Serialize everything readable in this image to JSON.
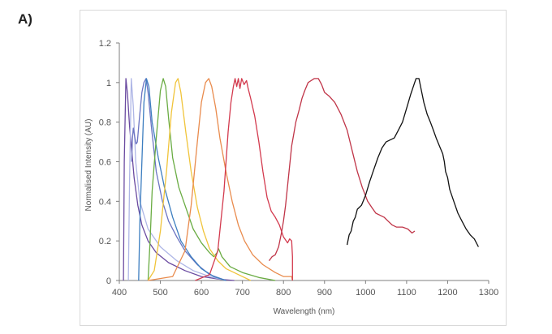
{
  "panel_label": "A)",
  "chart_data": {
    "type": "line",
    "title": "",
    "xlabel": "Wavelength (nm)",
    "ylabel": "Normalised Intensity (AU)",
    "xlim": [
      400,
      1300
    ],
    "ylim": [
      0,
      1.2
    ],
    "xticks": [
      400,
      500,
      600,
      700,
      800,
      900,
      1000,
      1100,
      1200,
      1300
    ],
    "yticks": [
      0,
      0.2,
      0.4,
      0.6,
      0.8,
      1,
      1.2
    ],
    "ytick_labels": [
      "0",
      "0.2",
      "0.4",
      "0.6",
      "0.8",
      "1",
      "1.2"
    ],
    "grid": false,
    "legend": "none",
    "series": [
      {
        "color": "#6a4aa0",
        "points": [
          [
            410,
            0
          ],
          [
            412,
            0.6
          ],
          [
            416,
            1.02
          ],
          [
            420,
            0.94
          ],
          [
            425,
            0.78
          ],
          [
            430,
            0.66
          ],
          [
            436,
            0.52
          ],
          [
            445,
            0.38
          ],
          [
            455,
            0.28
          ],
          [
            470,
            0.2
          ],
          [
            490,
            0.14
          ],
          [
            520,
            0.09
          ],
          [
            560,
            0.05
          ],
          [
            600,
            0.02
          ],
          [
            650,
            0.005
          ],
          [
            680,
            0
          ]
        ]
      },
      {
        "color": "#aeb6e6",
        "points": [
          [
            422,
            0
          ],
          [
            425,
            0.5
          ],
          [
            429,
            1.02
          ],
          [
            434,
            0.88
          ],
          [
            440,
            0.6
          ],
          [
            450,
            0.4
          ],
          [
            470,
            0.26
          ],
          [
            500,
            0.17
          ],
          [
            540,
            0.1
          ],
          [
            580,
            0.05
          ],
          [
            620,
            0.02
          ],
          [
            660,
            0
          ]
        ]
      },
      {
        "color": "#6b74c2",
        "points": [
          [
            430,
            0.6
          ],
          [
            432,
            0.72
          ],
          [
            434,
            0.77
          ],
          [
            438,
            0.72
          ],
          [
            441,
            0.69
          ],
          [
            444,
            0.7
          ],
          [
            448,
            0.8
          ],
          [
            455,
            0.95
          ],
          [
            460,
            1.0
          ],
          [
            465,
            1.02
          ],
          [
            470,
            0.95
          ],
          [
            478,
            0.78
          ],
          [
            490,
            0.55
          ],
          [
            505,
            0.4
          ],
          [
            520,
            0.3
          ],
          [
            540,
            0.22
          ],
          [
            560,
            0.15
          ],
          [
            590,
            0.08
          ],
          [
            620,
            0.03
          ],
          [
            660,
            0
          ]
        ]
      },
      {
        "color": "#3d7ec0",
        "points": [
          [
            447,
            0
          ],
          [
            450,
            0.3
          ],
          [
            455,
            0.6
          ],
          [
            460,
            0.9
          ],
          [
            466,
            1.02
          ],
          [
            472,
            0.98
          ],
          [
            480,
            0.8
          ],
          [
            495,
            0.62
          ],
          [
            510,
            0.47
          ],
          [
            530,
            0.32
          ],
          [
            550,
            0.2
          ],
          [
            575,
            0.12
          ],
          [
            600,
            0.06
          ],
          [
            630,
            0.02
          ],
          [
            660,
            0
          ]
        ]
      },
      {
        "color": "#6aac43",
        "points": [
          [
            470,
            0
          ],
          [
            475,
            0.2
          ],
          [
            480,
            0.45
          ],
          [
            490,
            0.72
          ],
          [
            500,
            0.96
          ],
          [
            507,
            1.02
          ],
          [
            513,
            0.98
          ],
          [
            520,
            0.82
          ],
          [
            530,
            0.62
          ],
          [
            545,
            0.47
          ],
          [
            560,
            0.38
          ],
          [
            580,
            0.26
          ],
          [
            600,
            0.19
          ],
          [
            620,
            0.14
          ],
          [
            630,
            0.12
          ],
          [
            638,
            0.14
          ],
          [
            642,
            0.16
          ],
          [
            650,
            0.12
          ],
          [
            670,
            0.07
          ],
          [
            700,
            0.04
          ],
          [
            740,
            0.015
          ],
          [
            780,
            0
          ]
        ]
      },
      {
        "color": "#f0c43a",
        "points": [
          [
            470,
            0
          ],
          [
            485,
            0.05
          ],
          [
            500,
            0.25
          ],
          [
            515,
            0.55
          ],
          [
            527,
            0.85
          ],
          [
            537,
            1.0
          ],
          [
            543,
            1.02
          ],
          [
            550,
            0.95
          ],
          [
            562,
            0.75
          ],
          [
            575,
            0.55
          ],
          [
            590,
            0.37
          ],
          [
            605,
            0.25
          ],
          [
            620,
            0.16
          ],
          [
            640,
            0.1
          ],
          [
            660,
            0.06
          ],
          [
            690,
            0.03
          ],
          [
            720,
            0
          ]
        ]
      },
      {
        "color": "#e98b4d",
        "points": [
          [
            470,
            0
          ],
          [
            530,
            0.02
          ],
          [
            560,
            0.15
          ],
          [
            575,
            0.38
          ],
          [
            590,
            0.7
          ],
          [
            600,
            0.9
          ],
          [
            610,
            1.0
          ],
          [
            618,
            1.02
          ],
          [
            625,
            0.98
          ],
          [
            635,
            0.87
          ],
          [
            645,
            0.72
          ],
          [
            660,
            0.55
          ],
          [
            675,
            0.4
          ],
          [
            690,
            0.28
          ],
          [
            705,
            0.2
          ],
          [
            725,
            0.13
          ],
          [
            750,
            0.08
          ],
          [
            780,
            0.04
          ],
          [
            800,
            0.02
          ],
          [
            820,
            0.02
          ],
          [
            822,
            0
          ]
        ]
      },
      {
        "color": "#d33a4e",
        "points": [
          [
            585,
            0
          ],
          [
            620,
            0.03
          ],
          [
            640,
            0.15
          ],
          [
            655,
            0.45
          ],
          [
            665,
            0.75
          ],
          [
            672,
            0.9
          ],
          [
            678,
            0.98
          ],
          [
            682,
            1.02
          ],
          [
            686,
            0.98
          ],
          [
            690,
            1.02
          ],
          [
            694,
            0.97
          ],
          [
            698,
            1.02
          ],
          [
            704,
            0.99
          ],
          [
            710,
            1.01
          ],
          [
            714,
            0.97
          ],
          [
            720,
            0.92
          ],
          [
            730,
            0.83
          ],
          [
            740,
            0.7
          ],
          [
            750,
            0.55
          ],
          [
            760,
            0.42
          ],
          [
            770,
            0.35
          ],
          [
            780,
            0.32
          ],
          [
            790,
            0.28
          ],
          [
            800,
            0.22
          ],
          [
            810,
            0.19
          ],
          [
            815,
            0.21
          ],
          [
            820,
            0.2
          ],
          [
            822,
            0.12
          ],
          [
            822,
            0
          ]
        ]
      },
      {
        "color": "#c03548",
        "points": [
          [
            765,
            0.1
          ],
          [
            772,
            0.12
          ],
          [
            780,
            0.13
          ],
          [
            788,
            0.17
          ],
          [
            795,
            0.24
          ],
          [
            800,
            0.3
          ],
          [
            805,
            0.38
          ],
          [
            810,
            0.48
          ],
          [
            815,
            0.58
          ],
          [
            820,
            0.68
          ],
          [
            825,
            0.74
          ],
          [
            830,
            0.8
          ],
          [
            838,
            0.86
          ],
          [
            845,
            0.92
          ],
          [
            852,
            0.96
          ],
          [
            860,
            1.0
          ],
          [
            875,
            1.02
          ],
          [
            885,
            1.02
          ],
          [
            893,
            0.99
          ],
          [
            900,
            0.95
          ],
          [
            912,
            0.93
          ],
          [
            925,
            0.9
          ],
          [
            940,
            0.84
          ],
          [
            955,
            0.76
          ],
          [
            968,
            0.65
          ],
          [
            980,
            0.55
          ],
          [
            992,
            0.47
          ],
          [
            1005,
            0.4
          ],
          [
            1015,
            0.37
          ],
          [
            1025,
            0.34
          ],
          [
            1035,
            0.33
          ],
          [
            1045,
            0.32
          ],
          [
            1055,
            0.3
          ],
          [
            1065,
            0.28
          ],
          [
            1075,
            0.27
          ],
          [
            1090,
            0.27
          ],
          [
            1103,
            0.26
          ],
          [
            1113,
            0.24
          ],
          [
            1120,
            0.25
          ]
        ]
      },
      {
        "color": "#111111",
        "points": [
          [
            955,
            0.18
          ],
          [
            960,
            0.23
          ],
          [
            965,
            0.25
          ],
          [
            970,
            0.3
          ],
          [
            975,
            0.32
          ],
          [
            980,
            0.36
          ],
          [
            990,
            0.38
          ],
          [
            1000,
            0.43
          ],
          [
            1010,
            0.5
          ],
          [
            1020,
            0.56
          ],
          [
            1030,
            0.62
          ],
          [
            1040,
            0.67
          ],
          [
            1050,
            0.7
          ],
          [
            1060,
            0.71
          ],
          [
            1070,
            0.72
          ],
          [
            1080,
            0.76
          ],
          [
            1090,
            0.8
          ],
          [
            1100,
            0.87
          ],
          [
            1110,
            0.94
          ],
          [
            1118,
            0.99
          ],
          [
            1123,
            1.02
          ],
          [
            1130,
            1.02
          ],
          [
            1135,
            0.97
          ],
          [
            1142,
            0.9
          ],
          [
            1150,
            0.84
          ],
          [
            1158,
            0.8
          ],
          [
            1165,
            0.76
          ],
          [
            1172,
            0.72
          ],
          [
            1180,
            0.68
          ],
          [
            1188,
            0.64
          ],
          [
            1192,
            0.6
          ],
          [
            1195,
            0.55
          ],
          [
            1200,
            0.52
          ],
          [
            1205,
            0.46
          ],
          [
            1215,
            0.4
          ],
          [
            1225,
            0.34
          ],
          [
            1235,
            0.3
          ],
          [
            1245,
            0.26
          ],
          [
            1255,
            0.23
          ],
          [
            1265,
            0.21
          ],
          [
            1275,
            0.17
          ]
        ]
      }
    ]
  }
}
